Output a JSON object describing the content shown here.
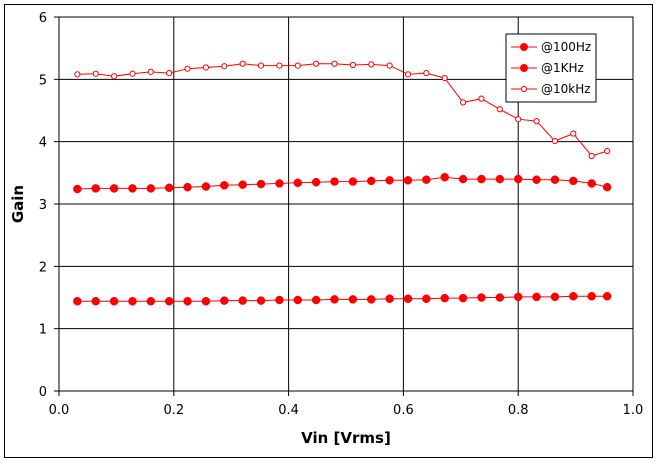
{
  "chart_data": {
    "type": "line",
    "xlabel": "Vin  [Vrms]",
    "ylabel": "Gain",
    "xlim": [
      0,
      1.0
    ],
    "ylim": [
      0,
      6
    ],
    "xticks": [
      "0.0",
      "0.2",
      "0.4",
      "0.6",
      "0.8",
      "1.0"
    ],
    "yticks": [
      "0",
      "1",
      "2",
      "3",
      "4",
      "5",
      "6"
    ],
    "grid": true,
    "legend_position": "top-right",
    "color": "#ff0000",
    "series": [
      {
        "name": "@100Hz",
        "marker": "filled-circle",
        "x": [
          0.032,
          0.064,
          0.096,
          0.128,
          0.16,
          0.192,
          0.224,
          0.256,
          0.288,
          0.32,
          0.352,
          0.384,
          0.416,
          0.448,
          0.48,
          0.512,
          0.544,
          0.576,
          0.608,
          0.64,
          0.672,
          0.704,
          0.736,
          0.768,
          0.8,
          0.832,
          0.864,
          0.896,
          0.928,
          0.955
        ],
        "y": [
          1.44,
          1.44,
          1.44,
          1.44,
          1.44,
          1.44,
          1.44,
          1.44,
          1.45,
          1.45,
          1.45,
          1.46,
          1.46,
          1.46,
          1.47,
          1.47,
          1.47,
          1.48,
          1.48,
          1.48,
          1.49,
          1.49,
          1.5,
          1.5,
          1.51,
          1.51,
          1.51,
          1.52,
          1.52,
          1.52
        ]
      },
      {
        "name": "@1KHz",
        "marker": "filled-circle",
        "x": [
          0.032,
          0.064,
          0.096,
          0.128,
          0.16,
          0.192,
          0.224,
          0.256,
          0.288,
          0.32,
          0.352,
          0.384,
          0.416,
          0.448,
          0.48,
          0.512,
          0.544,
          0.576,
          0.608,
          0.64,
          0.672,
          0.704,
          0.736,
          0.768,
          0.8,
          0.832,
          0.864,
          0.896,
          0.928,
          0.955
        ],
        "y": [
          3.24,
          3.25,
          3.25,
          3.25,
          3.25,
          3.26,
          3.27,
          3.28,
          3.3,
          3.31,
          3.32,
          3.33,
          3.34,
          3.35,
          3.36,
          3.36,
          3.37,
          3.38,
          3.38,
          3.39,
          3.43,
          3.4,
          3.4,
          3.4,
          3.4,
          3.39,
          3.39,
          3.37,
          3.33,
          3.27
        ]
      },
      {
        "name": "@10kHz",
        "marker": "open-circle",
        "x": [
          0.032,
          0.064,
          0.096,
          0.128,
          0.16,
          0.192,
          0.224,
          0.256,
          0.288,
          0.32,
          0.352,
          0.384,
          0.416,
          0.448,
          0.48,
          0.512,
          0.544,
          0.576,
          0.608,
          0.64,
          0.672,
          0.704,
          0.736,
          0.768,
          0.8,
          0.832,
          0.864,
          0.896,
          0.928,
          0.955
        ],
        "y": [
          5.08,
          5.09,
          5.05,
          5.09,
          5.12,
          5.1,
          5.17,
          5.19,
          5.21,
          5.25,
          5.22,
          5.22,
          5.22,
          5.25,
          5.25,
          5.23,
          5.24,
          5.22,
          5.08,
          5.1,
          5.02,
          4.63,
          4.69,
          4.52,
          4.36,
          4.33,
          4.01,
          4.13,
          3.77,
          3.85
        ]
      }
    ]
  }
}
